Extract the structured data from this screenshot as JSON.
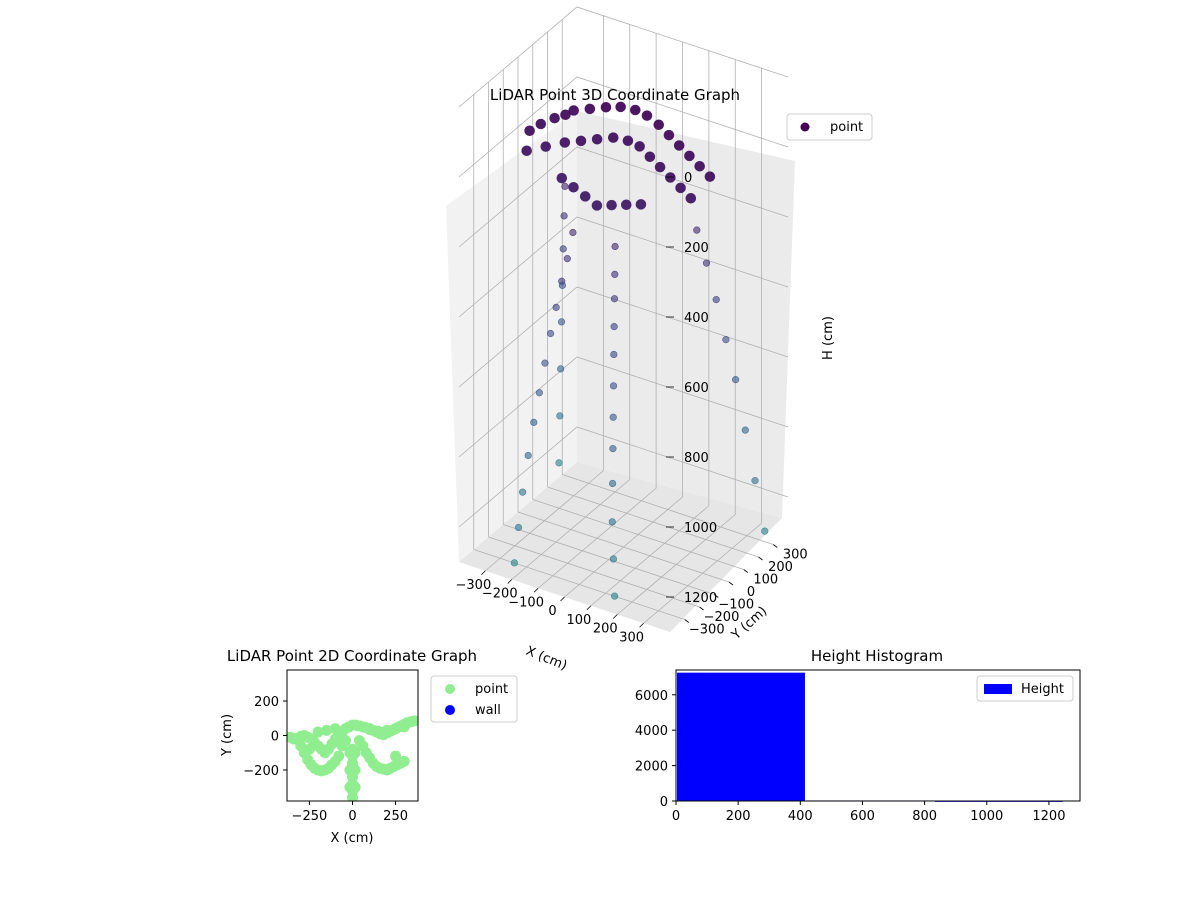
{
  "chart_data": [
    {
      "type": "scatter",
      "projection": "3d",
      "title": "LiDAR Point 3D Coordinate Graph",
      "xlabel": "X (cm)",
      "ylabel": "Y (cm)",
      "zlabel": "H (cm)",
      "xlim": [
        -400,
        400
      ],
      "ylim": [
        -400,
        400
      ],
      "zlim": [
        1300,
        0
      ],
      "xticks": [
        "−300",
        "−200",
        "−100",
        "0",
        "100",
        "200",
        "300"
      ],
      "yticks": [
        "−300",
        "−200",
        "−100",
        "0",
        "100",
        "200",
        "300"
      ],
      "zticks": [
        "0",
        "200",
        "400",
        "600",
        "800",
        "1000",
        "1200"
      ],
      "grid": true,
      "legend": {
        "position": "top-right",
        "entries": [
          {
            "label": "point",
            "color": "#440154"
          }
        ]
      },
      "series": [
        {
          "name": "point",
          "colormap": "viridis",
          "description_points": "dense arch of points near H 0-300, with sparse points falling to H ~1300 along rays",
          "points": [
            [
              -300,
              -100,
              150
            ],
            [
              -280,
              -60,
              140
            ],
            [
              -250,
              -20,
              130
            ],
            [
              -220,
              0,
              120
            ],
            [
              -200,
              20,
              110
            ],
            [
              -150,
              40,
              100
            ],
            [
              -100,
              60,
              90
            ],
            [
              -50,
              70,
              80
            ],
            [
              0,
              80,
              80
            ],
            [
              50,
              70,
              80
            ],
            [
              100,
              60,
              90
            ],
            [
              150,
              40,
              100
            ],
            [
              200,
              20,
              110
            ],
            [
              250,
              0,
              120
            ],
            [
              300,
              -20,
              130
            ],
            [
              350,
              -40,
              140
            ],
            [
              -300,
              -120,
              200
            ],
            [
              -250,
              -80,
              190
            ],
            [
              -200,
              -40,
              180
            ],
            [
              -150,
              -20,
              170
            ],
            [
              -100,
              0,
              160
            ],
            [
              -50,
              20,
              150
            ],
            [
              0,
              30,
              150
            ],
            [
              50,
              20,
              150
            ],
            [
              100,
              0,
              160
            ],
            [
              150,
              -20,
              170
            ],
            [
              200,
              -40,
              180
            ],
            [
              250,
              -60,
              190
            ],
            [
              300,
              -80,
              200
            ],
            [
              -150,
              -150,
              230
            ],
            [
              -100,
              -160,
              240
            ],
            [
              -50,
              -170,
              250
            ],
            [
              0,
              -180,
              260
            ],
            [
              50,
              -170,
              250
            ],
            [
              100,
              -160,
              240
            ],
            [
              150,
              -150,
              230
            ],
            [
              -80,
              -200,
              350
            ],
            [
              -90,
              -220,
              420
            ],
            [
              -100,
              -240,
              480
            ],
            [
              -110,
              -260,
              550
            ],
            [
              -120,
              -280,
              620
            ],
            [
              -130,
              -300,
              700
            ],
            [
              -140,
              -320,
              780
            ],
            [
              -150,
              -340,
              860
            ],
            [
              -160,
              -360,
              950
            ],
            [
              -170,
              -380,
              1050
            ],
            [
              -180,
              -390,
              1150
            ],
            [
              -190,
              -400,
              1250
            ],
            [
              80,
              -200,
              350
            ],
            [
              90,
              -220,
              420
            ],
            [
              100,
              -240,
              480
            ],
            [
              110,
              -260,
              550
            ],
            [
              120,
              -280,
              620
            ],
            [
              130,
              -300,
              700
            ],
            [
              140,
              -320,
              780
            ],
            [
              150,
              -340,
              860
            ],
            [
              160,
              -360,
              950
            ],
            [
              170,
              -380,
              1050
            ],
            [
              180,
              -390,
              1150
            ],
            [
              190,
              -400,
              1250
            ],
            [
              -250,
              50,
              350
            ],
            [
              -270,
              80,
              450
            ],
            [
              -290,
              110,
              560
            ],
            [
              -310,
              140,
              680
            ],
            [
              -330,
              170,
              800
            ],
            [
              -350,
              200,
              950
            ],
            [
              -370,
              230,
              1100
            ],
            [
              -390,
              260,
              1250
            ],
            [
              250,
              50,
              350
            ],
            [
              270,
              80,
              450
            ],
            [
              290,
              110,
              560
            ],
            [
              310,
              140,
              680
            ],
            [
              330,
              170,
              800
            ],
            [
              350,
              200,
              950
            ],
            [
              370,
              230,
              1100
            ],
            [
              390,
              260,
              1250
            ]
          ]
        }
      ]
    },
    {
      "type": "scatter",
      "title": "LiDAR Point 2D Coordinate Graph",
      "xlabel": "X (cm)",
      "ylabel": "Y (cm)",
      "xlim": [
        -380,
        380
      ],
      "ylim": [
        -380,
        380
      ],
      "xticks": [
        "−250",
        "0",
        "250"
      ],
      "yticks": [
        "200",
        "0",
        "−200"
      ],
      "grid": false,
      "legend": {
        "position": "right, outside",
        "entries": [
          {
            "label": "point",
            "color": "#90ee90"
          },
          {
            "label": "wall",
            "color": "#0000ff"
          }
        ]
      },
      "series": [
        {
          "name": "point",
          "color": "#90ee90",
          "points": [
            [
              -360,
              -10
            ],
            [
              -340,
              -20
            ],
            [
              -320,
              -15
            ],
            [
              -300,
              -5
            ],
            [
              -280,
              0
            ],
            [
              -260,
              -10
            ],
            [
              -240,
              -20
            ],
            [
              -220,
              -40
            ],
            [
              -200,
              -60
            ],
            [
              -180,
              -80
            ],
            [
              -160,
              -100
            ],
            [
              -140,
              -80
            ],
            [
              -120,
              -50
            ],
            [
              -100,
              -20
            ],
            [
              -80,
              0
            ],
            [
              -60,
              20
            ],
            [
              -40,
              40
            ],
            [
              -20,
              50
            ],
            [
              0,
              60
            ],
            [
              20,
              60
            ],
            [
              40,
              55
            ],
            [
              60,
              50
            ],
            [
              80,
              45
            ],
            [
              100,
              40
            ],
            [
              120,
              30
            ],
            [
              140,
              20
            ],
            [
              160,
              10
            ],
            [
              180,
              5
            ],
            [
              200,
              15
            ],
            [
              220,
              25
            ],
            [
              240,
              35
            ],
            [
              260,
              45
            ],
            [
              280,
              55
            ],
            [
              300,
              65
            ],
            [
              320,
              75
            ],
            [
              340,
              80
            ],
            [
              360,
              85
            ],
            [
              -300,
              -60
            ],
            [
              -280,
              -100
            ],
            [
              -260,
              -140
            ],
            [
              -240,
              -170
            ],
            [
              -220,
              -190
            ],
            [
              -200,
              -200
            ],
            [
              -180,
              -205
            ],
            [
              -160,
              -200
            ],
            [
              -140,
              -190
            ],
            [
              -120,
              -170
            ],
            [
              -100,
              -150
            ],
            [
              -80,
              -120
            ],
            [
              80,
              -100
            ],
            [
              100,
              -130
            ],
            [
              120,
              -160
            ],
            [
              140,
              -180
            ],
            [
              160,
              -190
            ],
            [
              180,
              -195
            ],
            [
              200,
              -200
            ],
            [
              220,
              -190
            ],
            [
              240,
              -180
            ],
            [
              260,
              -170
            ],
            [
              280,
              -160
            ],
            [
              300,
              -150
            ],
            [
              0,
              -80
            ],
            [
              0,
              -120
            ],
            [
              0,
              -160
            ],
            [
              0,
              -200
            ],
            [
              0,
              -240
            ],
            [
              0,
              -280
            ],
            [
              0,
              -320
            ],
            [
              0,
              -360
            ],
            [
              -15,
              -100
            ],
            [
              15,
              -100
            ],
            [
              -15,
              -200
            ],
            [
              15,
              -200
            ],
            [
              -15,
              -300
            ],
            [
              15,
              -300
            ],
            [
              -200,
              20
            ],
            [
              -150,
              30
            ],
            [
              -100,
              40
            ],
            [
              100,
              35
            ],
            [
              150,
              25
            ],
            [
              200,
              30
            ],
            [
              250,
              40
            ],
            [
              300,
              50
            ],
            [
              -250,
              -80
            ],
            [
              250,
              -120
            ],
            [
              -60,
              -60
            ],
            [
              60,
              -60
            ],
            [
              -40,
              -30
            ],
            [
              40,
              -30
            ]
          ]
        },
        {
          "name": "wall",
          "color": "#0000ff",
          "points": []
        }
      ]
    },
    {
      "type": "bar",
      "subtype": "histogram",
      "title": "Height Histogram",
      "xlabel": "",
      "ylabel": "",
      "xlim": [
        0,
        1300
      ],
      "ylim": [
        0,
        7400
      ],
      "xticks": [
        "0",
        "200",
        "400",
        "600",
        "800",
        "1000",
        "1200"
      ],
      "yticks": [
        "0",
        "2000",
        "4000",
        "6000"
      ],
      "grid": false,
      "legend": {
        "position": "top-right",
        "entries": [
          {
            "label": "Height",
            "color": "#0000ff"
          }
        ]
      },
      "series": [
        {
          "name": "Height",
          "color": "#0000ff",
          "bins": [
            [
              0,
              415,
              7250
            ],
            [
              415,
              830,
              30
            ],
            [
              830,
              1245,
              8
            ]
          ]
        }
      ]
    }
  ]
}
